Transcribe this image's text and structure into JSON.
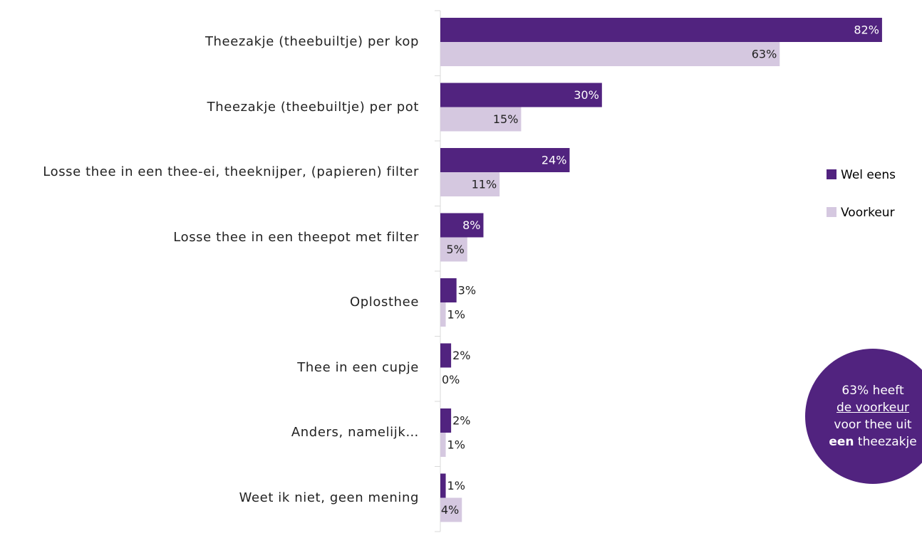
{
  "chart_data": {
    "type": "bar",
    "orientation": "horizontal",
    "categories": [
      "Theezakje (theebuiltje) per kop",
      "Theezakje (theebuiltje) per pot",
      "Losse thee in een thee-ei, theeknijper, (papieren) filter",
      "Losse thee in een theepot met filter",
      "Oplosthee",
      "Thee in een cupje",
      "Anders, namelijk…",
      "Weet ik niet, geen mening"
    ],
    "series": [
      {
        "name": "Wel eens",
        "color": "#51237f",
        "values": [
          82,
          30,
          24,
          8,
          3,
          2,
          2,
          1
        ],
        "value_labels": [
          "82%",
          "30%",
          "24%",
          "8%",
          "3%",
          "2%",
          "2%",
          "1%"
        ]
      },
      {
        "name": "Voorkeur",
        "color": "#d5c8e0",
        "values": [
          63,
          15,
          11,
          5,
          1,
          0,
          1,
          4
        ],
        "value_labels": [
          "63%",
          "15%",
          "11%",
          "5%",
          "1%",
          "0%",
          "1%",
          "4%"
        ]
      }
    ],
    "annotation": {
      "lines": [
        "63% heeft",
        "de voorkeur",
        "voor thee uit"
      ],
      "last_line": {
        "bold": "een",
        "rest": "theezakje"
      }
    }
  }
}
